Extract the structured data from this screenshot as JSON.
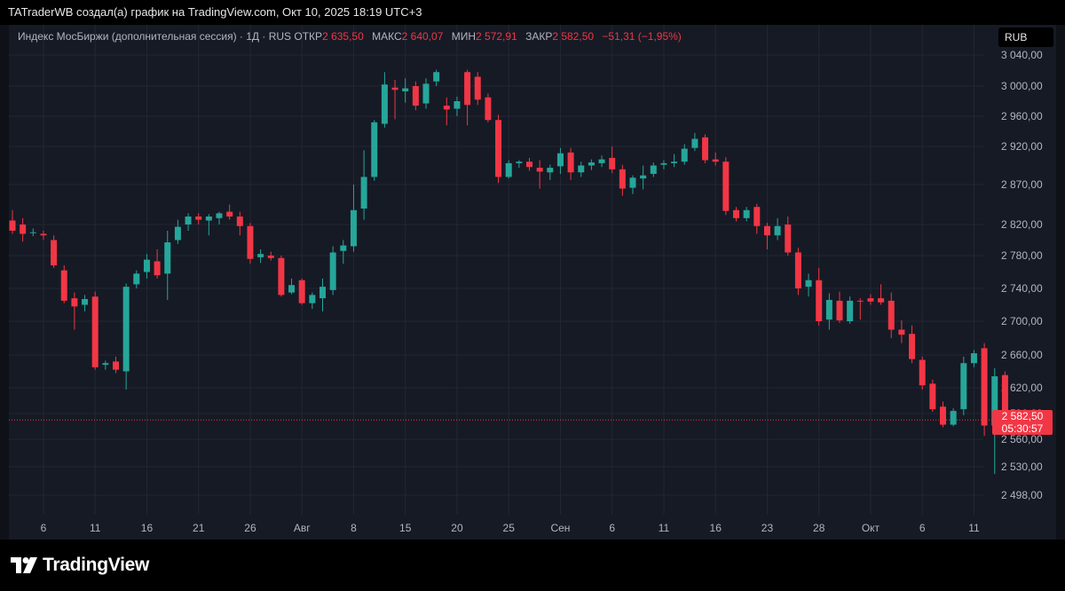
{
  "header": {
    "text": "TATraderWB создал(а) график на TradingView.com, Окт 10, 2025 18:19 UTC+3"
  },
  "legend": {
    "symbol": "Индекс МосБиржи (дополнительная сессия) · 1Д · RUS",
    "open_label": "ОТКР",
    "open": "2 635,50",
    "high_label": "МАКС",
    "high": "2 640,07",
    "low_label": "МИН",
    "low": "2 572,91",
    "close_label": "ЗАКР",
    "close": "2 582,50",
    "change": "−51,31 (−1,95%)"
  },
  "currency_button": "RUB",
  "last_price": {
    "value": "2 582,50",
    "countdown": "05:30:57"
  },
  "footer": {
    "brand": "TradingView"
  },
  "colors": {
    "up": "#26a69a",
    "down": "#f23645",
    "background": "#161a25",
    "grid": "#232734"
  },
  "chart_data": {
    "type": "candlestick",
    "y_ticks": [
      {
        "value": 3040,
        "label": "3 040,00"
      },
      {
        "value": 3000,
        "label": "3 000,00"
      },
      {
        "value": 2960,
        "label": "2 960,00"
      },
      {
        "value": 2920,
        "label": "2 920,00"
      },
      {
        "value": 2870,
        "label": "2 870,00"
      },
      {
        "value": 2820,
        "label": "2 820,00"
      },
      {
        "value": 2780,
        "label": "2 780,00"
      },
      {
        "value": 2740,
        "label": "2 740,00"
      },
      {
        "value": 2700,
        "label": "2 700,00"
      },
      {
        "value": 2660,
        "label": "2 660,00"
      },
      {
        "value": 2620,
        "label": "2 620,00"
      },
      {
        "value": 2590,
        "label": "2 590,00"
      },
      {
        "value": 2560,
        "label": "2 560,00"
      },
      {
        "value": 2530,
        "label": "2 530,00"
      },
      {
        "value": 2498,
        "label": "2 498,00"
      }
    ],
    "x_ticks": [
      {
        "index": 3,
        "label": "6"
      },
      {
        "index": 8,
        "label": "11"
      },
      {
        "index": 13,
        "label": "16"
      },
      {
        "index": 18,
        "label": "21"
      },
      {
        "index": 23,
        "label": "26"
      },
      {
        "index": 28,
        "label": "Авг"
      },
      {
        "index": 33,
        "label": "8"
      },
      {
        "index": 38,
        "label": "15"
      },
      {
        "index": 43,
        "label": "20"
      },
      {
        "index": 48,
        "label": "25"
      },
      {
        "index": 53,
        "label": "Сен"
      },
      {
        "index": 58,
        "label": "6"
      },
      {
        "index": 63,
        "label": "11"
      },
      {
        "index": 68,
        "label": "16"
      },
      {
        "index": 73,
        "label": "23"
      },
      {
        "index": 78,
        "label": "28"
      },
      {
        "index": 83,
        "label": "Окт"
      },
      {
        "index": 88,
        "label": "6"
      },
      {
        "index": 93,
        "label": "11"
      }
    ],
    "last_close": 2582.5,
    "candles": [
      {
        "o": 2825,
        "h": 2838,
        "l": 2808,
        "c": 2812
      },
      {
        "o": 2820,
        "h": 2828,
        "l": 2798,
        "c": 2808
      },
      {
        "o": 2810,
        "h": 2815,
        "l": 2805,
        "c": 2810
      },
      {
        "o": 2808,
        "h": 2812,
        "l": 2800,
        "c": 2806
      },
      {
        "o": 2800,
        "h": 2806,
        "l": 2765,
        "c": 2768
      },
      {
        "o": 2762,
        "h": 2768,
        "l": 2722,
        "c": 2725
      },
      {
        "o": 2728,
        "h": 2735,
        "l": 2690,
        "c": 2718
      },
      {
        "o": 2720,
        "h": 2732,
        "l": 2712,
        "c": 2727
      },
      {
        "o": 2730,
        "h": 2736,
        "l": 2642,
        "c": 2645
      },
      {
        "o": 2648,
        "h": 2653,
        "l": 2642,
        "c": 2650
      },
      {
        "o": 2652,
        "h": 2658,
        "l": 2638,
        "c": 2642
      },
      {
        "o": 2640,
        "h": 2746,
        "l": 2618,
        "c": 2742
      },
      {
        "o": 2745,
        "h": 2762,
        "l": 2740,
        "c": 2758
      },
      {
        "o": 2760,
        "h": 2782,
        "l": 2752,
        "c": 2775
      },
      {
        "o": 2773,
        "h": 2788,
        "l": 2752,
        "c": 2756
      },
      {
        "o": 2758,
        "h": 2812,
        "l": 2726,
        "c": 2797
      },
      {
        "o": 2800,
        "h": 2826,
        "l": 2795,
        "c": 2817
      },
      {
        "o": 2820,
        "h": 2834,
        "l": 2812,
        "c": 2830
      },
      {
        "o": 2830,
        "h": 2834,
        "l": 2820,
        "c": 2826
      },
      {
        "o": 2825,
        "h": 2833,
        "l": 2806,
        "c": 2830
      },
      {
        "o": 2828,
        "h": 2836,
        "l": 2820,
        "c": 2834
      },
      {
        "o": 2836,
        "h": 2845,
        "l": 2826,
        "c": 2830
      },
      {
        "o": 2830,
        "h": 2836,
        "l": 2806,
        "c": 2818
      },
      {
        "o": 2818,
        "h": 2822,
        "l": 2770,
        "c": 2776
      },
      {
        "o": 2778,
        "h": 2788,
        "l": 2771,
        "c": 2782
      },
      {
        "o": 2780,
        "h": 2785,
        "l": 2774,
        "c": 2777
      },
      {
        "o": 2777,
        "h": 2780,
        "l": 2730,
        "c": 2732
      },
      {
        "o": 2735,
        "h": 2752,
        "l": 2733,
        "c": 2744
      },
      {
        "o": 2750,
        "h": 2752,
        "l": 2720,
        "c": 2722
      },
      {
        "o": 2722,
        "h": 2735,
        "l": 2715,
        "c": 2732
      },
      {
        "o": 2728,
        "h": 2752,
        "l": 2712,
        "c": 2742
      },
      {
        "o": 2738,
        "h": 2792,
        "l": 2732,
        "c": 2784
      },
      {
        "o": 2786,
        "h": 2800,
        "l": 2770,
        "c": 2793
      },
      {
        "o": 2792,
        "h": 2870,
        "l": 2785,
        "c": 2838
      },
      {
        "o": 2840,
        "h": 2915,
        "l": 2826,
        "c": 2880
      },
      {
        "o": 2880,
        "h": 2955,
        "l": 2875,
        "c": 2952
      },
      {
        "o": 2950,
        "h": 3018,
        "l": 2945,
        "c": 3002
      },
      {
        "o": 2998,
        "h": 3008,
        "l": 2956,
        "c": 2995
      },
      {
        "o": 2993,
        "h": 3010,
        "l": 2978,
        "c": 2997
      },
      {
        "o": 3000,
        "h": 3006,
        "l": 2968,
        "c": 2974
      },
      {
        "o": 2977,
        "h": 3010,
        "l": 2970,
        "c": 3003
      },
      {
        "o": 3006,
        "h": 3021,
        "l": 3000,
        "c": 3018
      },
      {
        "o": 2974,
        "h": 2985,
        "l": 2948,
        "c": 2969
      },
      {
        "o": 2970,
        "h": 2986,
        "l": 2960,
        "c": 2980
      },
      {
        "o": 3018,
        "h": 3021,
        "l": 2948,
        "c": 2975
      },
      {
        "o": 3012,
        "h": 3018,
        "l": 2975,
        "c": 2982
      },
      {
        "o": 2985,
        "h": 2990,
        "l": 2952,
        "c": 2955
      },
      {
        "o": 2955,
        "h": 2962,
        "l": 2872,
        "c": 2880
      },
      {
        "o": 2880,
        "h": 2902,
        "l": 2878,
        "c": 2898
      },
      {
        "o": 2898,
        "h": 2902,
        "l": 2892,
        "c": 2900
      },
      {
        "o": 2900,
        "h": 2905,
        "l": 2888,
        "c": 2893
      },
      {
        "o": 2892,
        "h": 2902,
        "l": 2865,
        "c": 2887
      },
      {
        "o": 2886,
        "h": 2896,
        "l": 2876,
        "c": 2892
      },
      {
        "o": 2894,
        "h": 2918,
        "l": 2884,
        "c": 2911
      },
      {
        "o": 2912,
        "h": 2918,
        "l": 2876,
        "c": 2886
      },
      {
        "o": 2886,
        "h": 2900,
        "l": 2880,
        "c": 2895
      },
      {
        "o": 2895,
        "h": 2903,
        "l": 2889,
        "c": 2899
      },
      {
        "o": 2898,
        "h": 2908,
        "l": 2893,
        "c": 2903
      },
      {
        "o": 2905,
        "h": 2920,
        "l": 2885,
        "c": 2890
      },
      {
        "o": 2890,
        "h": 2896,
        "l": 2856,
        "c": 2865
      },
      {
        "o": 2866,
        "h": 2882,
        "l": 2858,
        "c": 2879
      },
      {
        "o": 2878,
        "h": 2895,
        "l": 2864,
        "c": 2882
      },
      {
        "o": 2884,
        "h": 2899,
        "l": 2880,
        "c": 2895
      },
      {
        "o": 2896,
        "h": 2902,
        "l": 2890,
        "c": 2898
      },
      {
        "o": 2898,
        "h": 2910,
        "l": 2893,
        "c": 2900
      },
      {
        "o": 2900,
        "h": 2923,
        "l": 2896,
        "c": 2917
      },
      {
        "o": 2918,
        "h": 2938,
        "l": 2914,
        "c": 2930
      },
      {
        "o": 2932,
        "h": 2936,
        "l": 2898,
        "c": 2902
      },
      {
        "o": 2903,
        "h": 2912,
        "l": 2895,
        "c": 2900
      },
      {
        "o": 2900,
        "h": 2906,
        "l": 2832,
        "c": 2837
      },
      {
        "o": 2838,
        "h": 2842,
        "l": 2824,
        "c": 2828
      },
      {
        "o": 2828,
        "h": 2842,
        "l": 2824,
        "c": 2838
      },
      {
        "o": 2842,
        "h": 2846,
        "l": 2808,
        "c": 2818
      },
      {
        "o": 2818,
        "h": 2822,
        "l": 2788,
        "c": 2806
      },
      {
        "o": 2806,
        "h": 2828,
        "l": 2800,
        "c": 2818
      },
      {
        "o": 2820,
        "h": 2830,
        "l": 2780,
        "c": 2784
      },
      {
        "o": 2784,
        "h": 2790,
        "l": 2732,
        "c": 2740
      },
      {
        "o": 2742,
        "h": 2758,
        "l": 2730,
        "c": 2750
      },
      {
        "o": 2750,
        "h": 2765,
        "l": 2695,
        "c": 2700
      },
      {
        "o": 2702,
        "h": 2734,
        "l": 2690,
        "c": 2726
      },
      {
        "o": 2725,
        "h": 2736,
        "l": 2698,
        "c": 2701
      },
      {
        "o": 2700,
        "h": 2730,
        "l": 2697,
        "c": 2725
      },
      {
        "o": 2725,
        "h": 2728,
        "l": 2702,
        "c": 2724
      },
      {
        "o": 2728,
        "h": 2733,
        "l": 2720,
        "c": 2724
      },
      {
        "o": 2728,
        "h": 2745,
        "l": 2720,
        "c": 2723
      },
      {
        "o": 2725,
        "h": 2735,
        "l": 2680,
        "c": 2690
      },
      {
        "o": 2690,
        "h": 2701,
        "l": 2674,
        "c": 2684
      },
      {
        "o": 2685,
        "h": 2695,
        "l": 2650,
        "c": 2655
      },
      {
        "o": 2654,
        "h": 2658,
        "l": 2618,
        "c": 2623
      },
      {
        "o": 2625,
        "h": 2630,
        "l": 2592,
        "c": 2595
      },
      {
        "o": 2598,
        "h": 2604,
        "l": 2574,
        "c": 2577
      },
      {
        "o": 2577,
        "h": 2596,
        "l": 2575,
        "c": 2593
      },
      {
        "o": 2595,
        "h": 2658,
        "l": 2588,
        "c": 2650
      },
      {
        "o": 2650,
        "h": 2666,
        "l": 2645,
        "c": 2662
      },
      {
        "o": 2668,
        "h": 2674,
        "l": 2564,
        "c": 2576
      },
      {
        "o": 2576,
        "h": 2644,
        "l": 2522,
        "c": 2634
      },
      {
        "o": 2635.5,
        "h": 2640.07,
        "l": 2572.91,
        "c": 2582.5
      }
    ]
  }
}
